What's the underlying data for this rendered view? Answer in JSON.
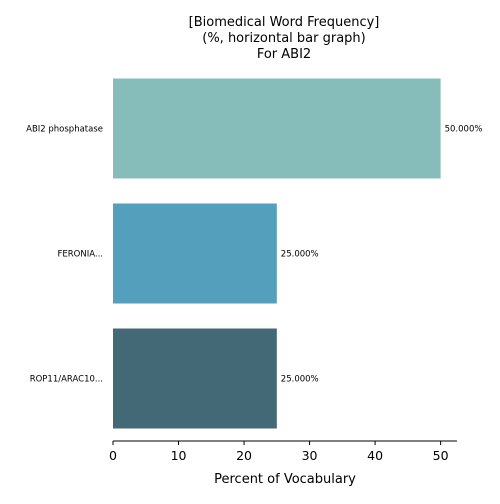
{
  "chart_data": {
    "type": "bar",
    "orientation": "horizontal",
    "title_lines": [
      "[Biomedical Word Frequency]",
      "(%, horizontal bar graph)",
      "For ABI2"
    ],
    "xlabel": "Percent of Vocabulary",
    "ylabel": "",
    "categories": [
      "ABI2 phosphatase",
      "FERONIA...",
      "ROP11/ARAC10..."
    ],
    "values": [
      50.0,
      25.0,
      25.0
    ],
    "value_labels": [
      "50.000%",
      "25.000%",
      "25.000%"
    ],
    "bar_colors": [
      "#86bcb9",
      "#539fbc",
      "#436876"
    ],
    "xlim": [
      0,
      52.5
    ],
    "xticks": [
      0,
      10,
      20,
      30,
      40,
      50
    ],
    "xtick_labels": [
      "0",
      "10",
      "20",
      "30",
      "40",
      "50"
    ],
    "grid": false
  }
}
